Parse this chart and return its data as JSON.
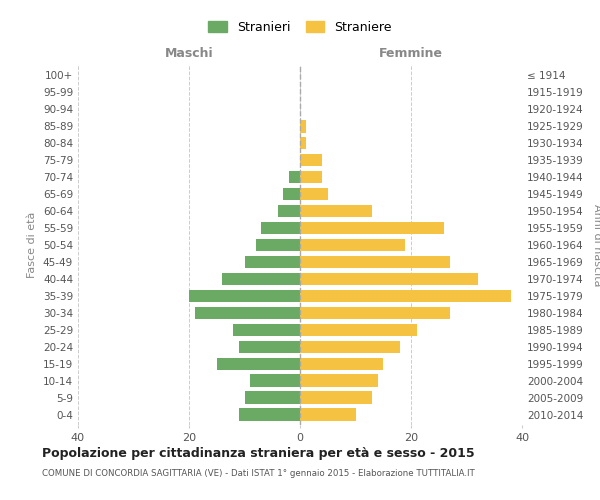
{
  "age_groups": [
    "100+",
    "95-99",
    "90-94",
    "85-89",
    "80-84",
    "75-79",
    "70-74",
    "65-69",
    "60-64",
    "55-59",
    "50-54",
    "45-49",
    "40-44",
    "35-39",
    "30-34",
    "25-29",
    "20-24",
    "15-19",
    "10-14",
    "5-9",
    "0-4"
  ],
  "birth_years": [
    "≤ 1914",
    "1915-1919",
    "1920-1924",
    "1925-1929",
    "1930-1934",
    "1935-1939",
    "1940-1944",
    "1945-1949",
    "1950-1954",
    "1955-1959",
    "1960-1964",
    "1965-1969",
    "1970-1974",
    "1975-1979",
    "1980-1984",
    "1985-1989",
    "1990-1994",
    "1995-1999",
    "2000-2004",
    "2005-2009",
    "2010-2014"
  ],
  "males": [
    0,
    0,
    0,
    0,
    0,
    0,
    2,
    3,
    4,
    7,
    8,
    10,
    14,
    20,
    19,
    12,
    11,
    15,
    9,
    10,
    11
  ],
  "females": [
    0,
    0,
    0,
    1,
    1,
    4,
    4,
    5,
    13,
    26,
    19,
    27,
    32,
    38,
    27,
    21,
    18,
    15,
    14,
    13,
    10
  ],
  "male_color": "#6aaa64",
  "female_color": "#f5c242",
  "background_color": "#ffffff",
  "grid_color": "#cccccc",
  "xlim": 40,
  "title": "Popolazione per cittadinanza straniera per età e sesso - 2015",
  "subtitle": "COMUNE DI CONCORDIA SAGITTARIA (VE) - Dati ISTAT 1° gennaio 2015 - Elaborazione TUTTITALIA.IT",
  "xlabel_left": "Maschi",
  "xlabel_right": "Femmine",
  "ylabel_left": "Fasce di età",
  "ylabel_right": "Anni di nascita",
  "legend_male": "Stranieri",
  "legend_female": "Straniere",
  "bar_height": 0.75
}
